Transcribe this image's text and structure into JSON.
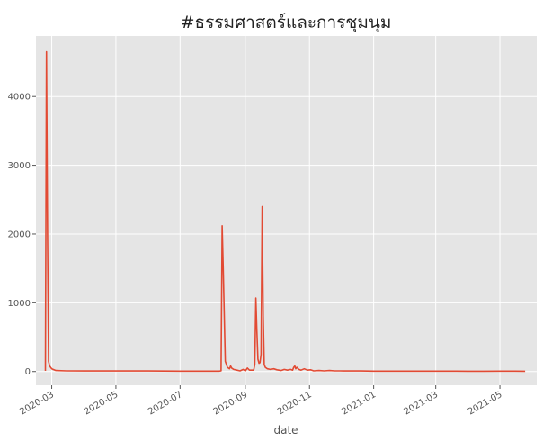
{
  "chart_data": {
    "type": "line",
    "title": "#ธรรมศาสตร์และการชุมนุม",
    "xlabel": "date",
    "ylabel": "",
    "x_ticks": [
      "2020-03",
      "2020-05",
      "2020-07",
      "2020-09",
      "2020-11",
      "2021-01",
      "2021-03",
      "2021-05"
    ],
    "y_ticks": [
      0,
      1000,
      2000,
      3000,
      4000
    ],
    "xlim": [
      "2020-02-15",
      "2021-06-05"
    ],
    "ylim": [
      -200,
      4880
    ],
    "grid": true,
    "line_color": "#e24a33",
    "background_color": "#e5e5e5",
    "x": [
      "2020-02-24",
      "2020-02-25",
      "2020-02-26",
      "2020-02-27",
      "2020-02-28",
      "2020-03-01",
      "2020-03-05",
      "2020-03-15",
      "2020-04-01",
      "2020-05-01",
      "2020-06-01",
      "2020-07-01",
      "2020-08-01",
      "2020-08-07",
      "2020-08-09",
      "2020-08-10",
      "2020-08-11",
      "2020-08-13",
      "2020-08-15",
      "2020-08-17",
      "2020-08-18",
      "2020-08-19",
      "2020-08-21",
      "2020-08-24",
      "2020-08-27",
      "2020-08-30",
      "2020-09-01",
      "2020-09-03",
      "2020-09-05",
      "2020-09-07",
      "2020-09-09",
      "2020-09-10",
      "2020-09-11",
      "2020-09-12",
      "2020-09-13",
      "2020-09-14",
      "2020-09-15",
      "2020-09-16",
      "2020-09-17",
      "2020-09-18",
      "2020-09-19",
      "2020-09-20",
      "2020-09-22",
      "2020-09-25",
      "2020-09-28",
      "2020-10-01",
      "2020-10-03",
      "2020-10-05",
      "2020-10-08",
      "2020-10-11",
      "2020-10-14",
      "2020-10-16",
      "2020-10-17",
      "2020-10-18",
      "2020-10-19",
      "2020-10-20",
      "2020-10-22",
      "2020-10-24",
      "2020-10-27",
      "2020-10-30",
      "2020-11-02",
      "2020-11-05",
      "2020-11-10",
      "2020-11-15",
      "2020-11-20",
      "2020-11-25",
      "2020-11-30",
      "2020-12-10",
      "2020-12-20",
      "2021-01-01",
      "2021-01-15",
      "2021-02-01",
      "2021-02-15",
      "2021-03-01",
      "2021-03-15",
      "2021-04-01",
      "2021-04-15",
      "2021-05-01",
      "2021-05-15",
      "2021-05-25"
    ],
    "values": [
      10,
      4650,
      2000,
      150,
      80,
      40,
      15,
      10,
      8,
      8,
      8,
      5,
      5,
      5,
      10,
      2120,
      1500,
      150,
      60,
      40,
      80,
      50,
      30,
      20,
      10,
      30,
      10,
      50,
      20,
      20,
      20,
      100,
      1070,
      600,
      180,
      120,
      130,
      250,
      2400,
      800,
      100,
      60,
      40,
      30,
      40,
      25,
      20,
      15,
      30,
      20,
      30,
      20,
      60,
      80,
      40,
      60,
      30,
      20,
      40,
      20,
      25,
      10,
      15,
      10,
      15,
      10,
      10,
      8,
      8,
      5,
      6,
      5,
      6,
      5,
      5,
      4,
      4,
      6,
      5,
      4
    ]
  }
}
